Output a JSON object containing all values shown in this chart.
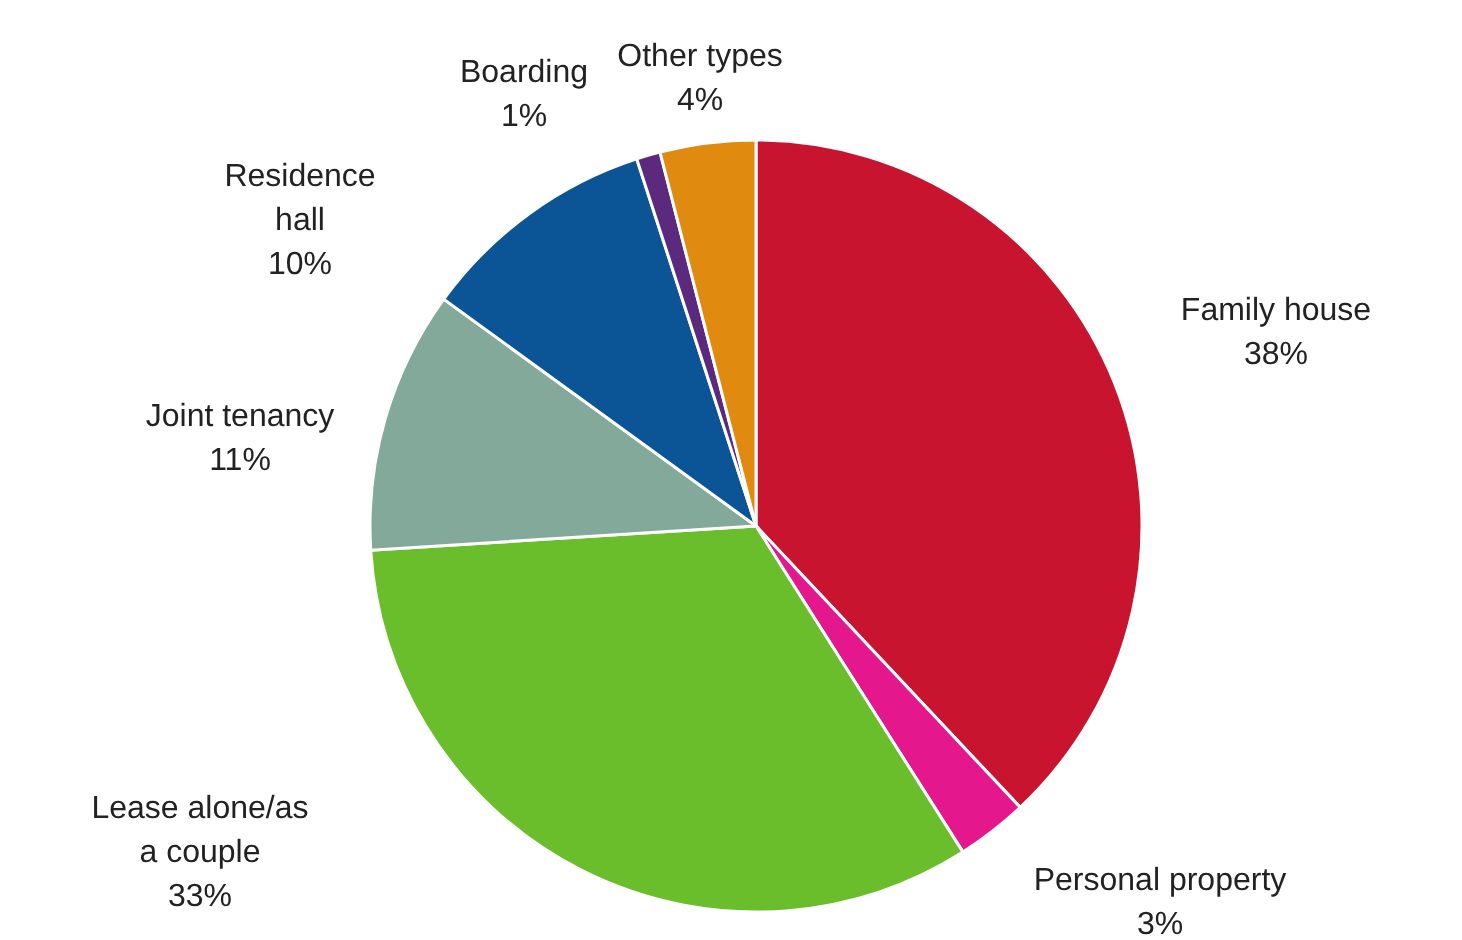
{
  "chart_data": {
    "type": "pie",
    "categories": [
      "Family house",
      "Personal property",
      "Lease alone/as a couple",
      "Joint tenancy",
      "Residence hall",
      "Boarding",
      "Other types"
    ],
    "values": [
      38,
      3,
      33,
      11,
      10,
      1,
      4
    ],
    "colors": [
      "#c8142e",
      "#e4178c",
      "#6abd2b",
      "#82a99a",
      "#0b5597",
      "#5b2a7e",
      "#e08a10"
    ],
    "value_labels": [
      "38%",
      "3%",
      "33%",
      "11%",
      "10%",
      "1%",
      "4%"
    ]
  }
}
